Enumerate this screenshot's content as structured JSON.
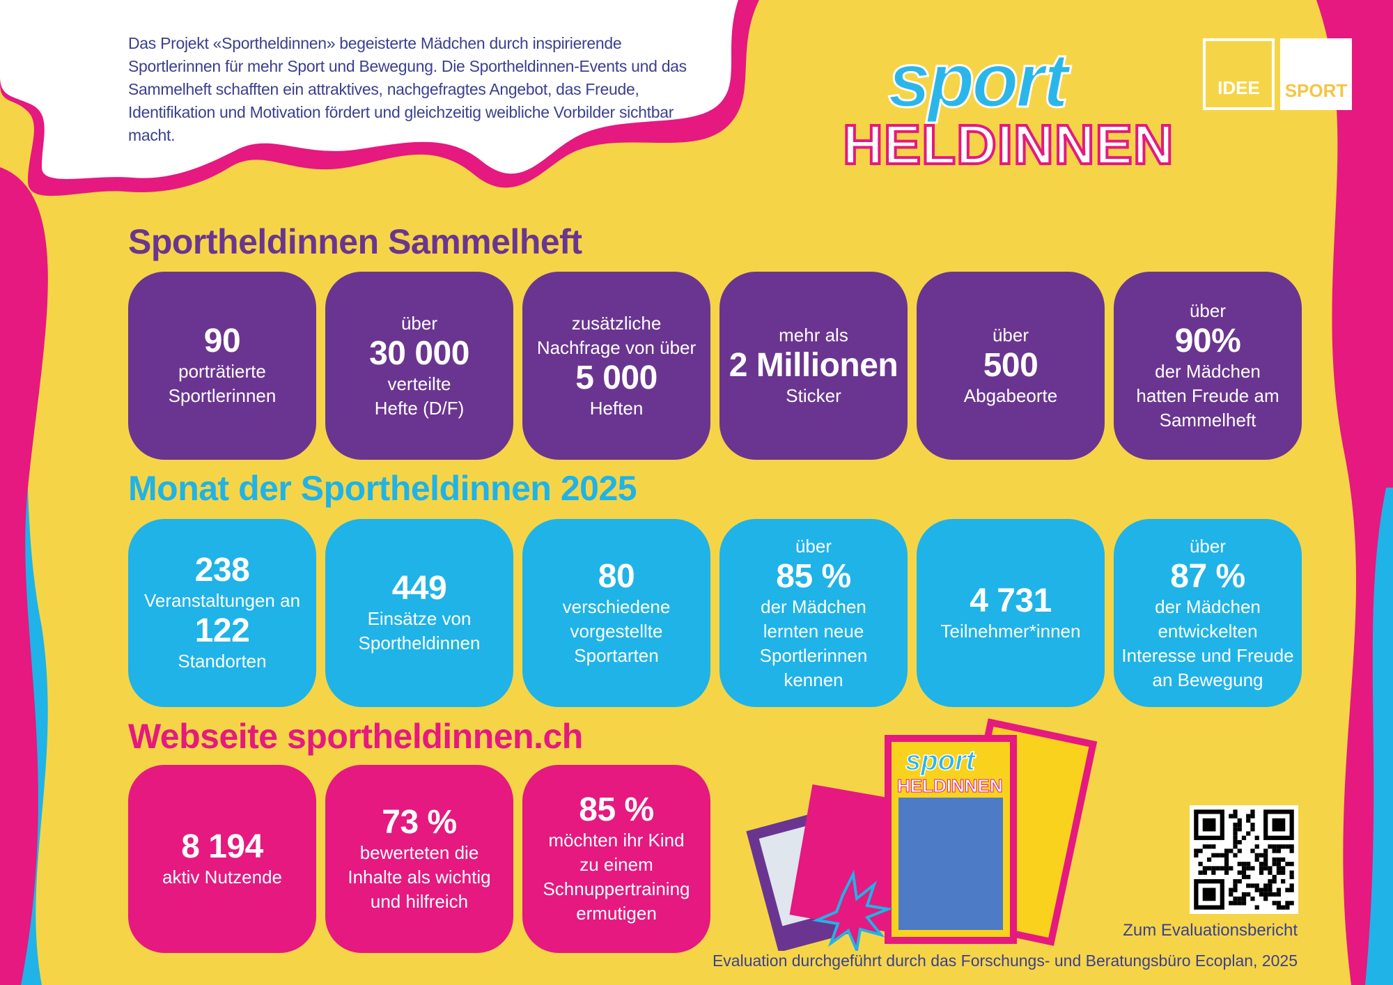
{
  "colors": {
    "background": "#f5d547",
    "purple": "#6a3590",
    "blue": "#1fb3e8",
    "pink": "#e5197f",
    "text": "#3b3f8f"
  },
  "intro": "Das Projekt «Sportheldinnen» begeisterte Mädchen durch inspirierende Sportlerinnen für mehr Sport und Bewegung. Die Sportheldinnen-Events und  das Sammelheft schafften ein attraktives, nachgefragtes Angebot, das Freude, Identifikation und Motivation fördert und gleichzeitig weibliche Vorbilder sichtbar macht.",
  "logo": {
    "line1": "sport",
    "line2": "HELDINNEN"
  },
  "partner_logo": {
    "left": "IDEE",
    "right": "SPORT"
  },
  "sections": [
    {
      "title": "Sportheldinnen Sammelheft",
      "color": "#6a3590",
      "cards": [
        {
          "lines": [
            {
              "t": "90",
              "big": true
            },
            {
              "t": "porträtierte"
            },
            {
              "t": "Sportlerinnen"
            }
          ]
        },
        {
          "lines": [
            {
              "t": "über"
            },
            {
              "t": "30 000",
              "big": true
            },
            {
              "t": "verteilte"
            },
            {
              "t": "Hefte (D/F)"
            }
          ]
        },
        {
          "lines": [
            {
              "t": "zusätzliche"
            },
            {
              "t": "Nachfrage von über"
            },
            {
              "t": "5 000",
              "big": true
            },
            {
              "t": "Heften"
            }
          ]
        },
        {
          "lines": [
            {
              "t": "mehr als"
            },
            {
              "t": "2 Millionen",
              "big": true
            },
            {
              "t": "Sticker"
            }
          ]
        },
        {
          "lines": [
            {
              "t": "über"
            },
            {
              "t": "500",
              "big": true
            },
            {
              "t": "Abgabeorte"
            }
          ]
        },
        {
          "lines": [
            {
              "t": "über"
            },
            {
              "t": "90%",
              "big": true
            },
            {
              "t": "der Mädchen"
            },
            {
              "t": "hatten Freude am"
            },
            {
              "t": "Sammelheft"
            }
          ]
        }
      ]
    },
    {
      "title": "Monat der Sportheldinnen 2025",
      "color": "#1fb3e8",
      "cards": [
        {
          "lines": [
            {
              "t": "238",
              "big": true
            },
            {
              "t": "Veranstaltungen an"
            },
            {
              "t": "122",
              "big": true
            },
            {
              "t": "Standorten"
            }
          ]
        },
        {
          "lines": [
            {
              "t": "449",
              "big": true
            },
            {
              "t": "Einsätze von"
            },
            {
              "t": "Sportheldinnen"
            }
          ]
        },
        {
          "lines": [
            {
              "t": "80",
              "big": true
            },
            {
              "t": "verschiedene"
            },
            {
              "t": "vorgestellte"
            },
            {
              "t": "Sportarten"
            }
          ]
        },
        {
          "lines": [
            {
              "t": "über"
            },
            {
              "t": "85 %",
              "big": true
            },
            {
              "t": "der Mädchen"
            },
            {
              "t": "lernten neue"
            },
            {
              "t": "Sportlerinnen"
            },
            {
              "t": "kennen"
            }
          ]
        },
        {
          "lines": [
            {
              "t": "4 731",
              "big": true
            },
            {
              "t": "Teilnehmer*innen"
            }
          ]
        },
        {
          "lines": [
            {
              "t": "über"
            },
            {
              "t": "87 %",
              "big": true
            },
            {
              "t": "der Mädchen"
            },
            {
              "t": "entwickelten"
            },
            {
              "t": "Interesse und Freude"
            },
            {
              "t": "an Bewegung"
            }
          ]
        }
      ]
    },
    {
      "title": "Webseite sportheldinnen.ch",
      "color": "#e5197f",
      "cards": [
        {
          "lines": [
            {
              "t": "8 194",
              "big": true
            },
            {
              "t": "aktiv Nutzende"
            }
          ]
        },
        {
          "lines": [
            {
              "t": "73 %",
              "big": true
            },
            {
              "t": "bewerteten die"
            },
            {
              "t": "Inhalte als wichtig"
            },
            {
              "t": "und hilfreich"
            }
          ]
        },
        {
          "lines": [
            {
              "t": "85 %",
              "big": true
            },
            {
              "t": "möchten ihr Kind"
            },
            {
              "t": "zu einem"
            },
            {
              "t": "Schnuppertraining"
            },
            {
              "t": "ermutigen"
            }
          ]
        }
      ]
    }
  ],
  "qr_label": "Zum Evaluationsbericht",
  "footer": "Evaluation durchgeführt durch das Forschungs- und Beratungsbüro Ecoplan, 2025"
}
